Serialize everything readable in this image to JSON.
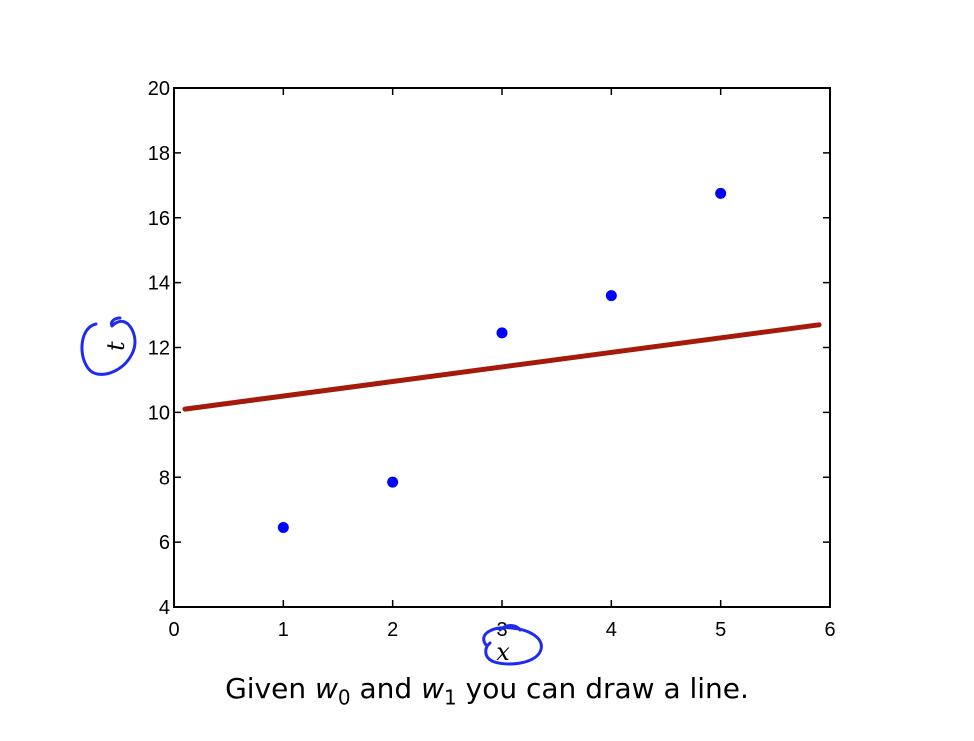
{
  "chart_data": {
    "type": "scatter",
    "xlabel": "x",
    "ylabel": "t",
    "xlim": [
      0,
      6
    ],
    "ylim": [
      4,
      20
    ],
    "xticks": [
      0,
      1,
      2,
      3,
      4,
      5,
      6
    ],
    "yticks": [
      4,
      6,
      8,
      10,
      12,
      14,
      16,
      18,
      20
    ],
    "grid": false,
    "series": [
      {
        "type": "scatter",
        "color": "#0000ff",
        "x": [
          1,
          2,
          3,
          4,
          5
        ],
        "y": [
          6.45,
          7.85,
          12.45,
          13.6,
          16.75
        ]
      },
      {
        "type": "line",
        "color": "#a51b0b",
        "x": [
          0.1,
          5.9
        ],
        "y": [
          10.1,
          12.7
        ]
      }
    ],
    "annotations": [
      {
        "type": "handwritten-circle",
        "target": "ylabel",
        "color": "#1f2cf0"
      },
      {
        "type": "handwritten-circle",
        "target": "xlabel",
        "color": "#1f2cf0"
      }
    ]
  },
  "caption": {
    "prefix": "Given ",
    "var0": "w",
    "sub0": "0",
    "mid": " and ",
    "var1": "w",
    "sub1": "1",
    "suffix": " you can draw a line."
  }
}
